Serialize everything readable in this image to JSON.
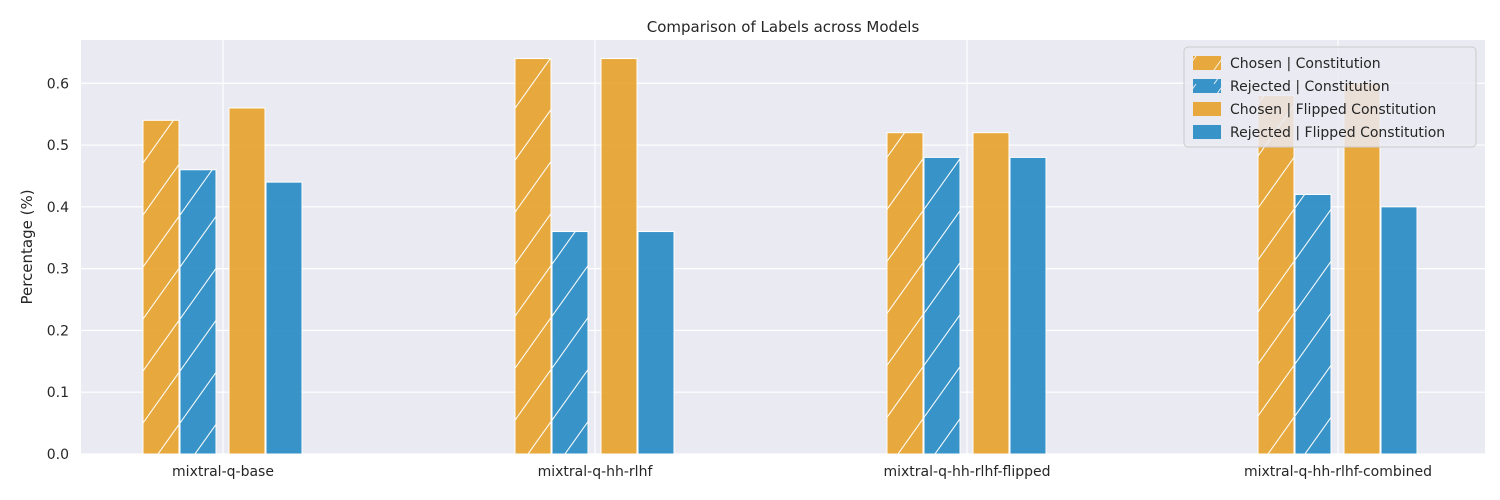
{
  "chart_data": {
    "type": "bar",
    "title": "Comparison of Labels across Models",
    "xlabel": "",
    "ylabel": "Percentage (%)",
    "ylim": [
      0,
      0.67
    ],
    "yticks": [
      0.0,
      0.1,
      0.2,
      0.3,
      0.4,
      0.5,
      0.6
    ],
    "ytick_labels": [
      "0.0",
      "0.1",
      "0.2",
      "0.3",
      "0.4",
      "0.5",
      "0.6"
    ],
    "grid": true,
    "legend_position": "top-right",
    "categories": [
      "mixtral-q-base",
      "mixtral-q-hh-rlhf",
      "mixtral-q-hh-rlhf-flipped",
      "mixtral-q-hh-rlhf-combined"
    ],
    "series": [
      {
        "name": "Chosen | Constitution",
        "color": "#e69f24",
        "hatch": true,
        "values": [
          0.54,
          0.64,
          0.52,
          0.58
        ]
      },
      {
        "name": "Rejected | Constitution",
        "color": "#1f86c1",
        "hatch": true,
        "values": [
          0.46,
          0.36,
          0.48,
          0.42
        ]
      },
      {
        "name": "Chosen | Flipped Constitution",
        "color": "#e69f24",
        "hatch": false,
        "values": [
          0.56,
          0.64,
          0.52,
          0.6
        ]
      },
      {
        "name": "Rejected | Flipped Constitution",
        "color": "#1f86c1",
        "hatch": false,
        "values": [
          0.44,
          0.36,
          0.48,
          0.4
        ]
      }
    ],
    "colors": {
      "background": "#eaeaf2",
      "grid": "#ffffff"
    }
  }
}
